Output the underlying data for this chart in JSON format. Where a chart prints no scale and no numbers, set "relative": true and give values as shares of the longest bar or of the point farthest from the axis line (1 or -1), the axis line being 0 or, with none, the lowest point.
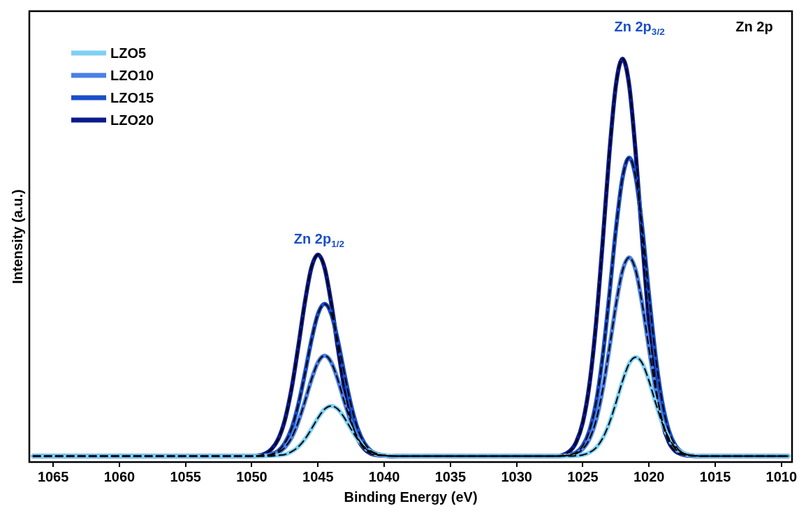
{
  "chart_data": {
    "type": "line",
    "xlabel": "Binding Energy (eV)",
    "ylabel": "Intensity (a.u.)",
    "relative": true,
    "xlim": [
      1066.8,
      1009.2
    ],
    "xticks": [
      1065,
      1060,
      1055,
      1050,
      1045,
      1040,
      1035,
      1030,
      1025,
      1020,
      1015,
      1010
    ],
    "legend": "top left",
    "grid": false,
    "marker": "none",
    "x": [
      1066.5,
      1050,
      1049,
      1048.5,
      1048,
      1047.5,
      1047,
      1046.5,
      1046,
      1045.5,
      1045,
      1044.5,
      1044,
      1043.5,
      1043,
      1042.5,
      1042,
      1041.5,
      1041,
      1040.5,
      1040,
      1039.5,
      1039,
      1027,
      1026,
      1025.5,
      1025,
      1024.5,
      1024,
      1023.5,
      1023,
      1022.5,
      1022,
      1021.5,
      1021,
      1020.5,
      1020,
      1019.5,
      1019,
      1018.5,
      1018,
      1017.5,
      1017,
      1016.5,
      1016,
      1009.5
    ],
    "series": [
      {
        "name": "LZO5",
        "color": "#7fd0f4",
        "values": [
          0,
          0,
          0,
          0.001,
          0.002,
          0.004,
          0.011,
          0.023,
          0.042,
          0.068,
          0.096,
          0.118,
          0.126,
          0.118,
          0.096,
          0.068,
          0.042,
          0.023,
          0.011,
          0.004,
          0.002,
          0.001,
          0,
          0,
          0,
          0.001,
          0.003,
          0.009,
          0.021,
          0.045,
          0.083,
          0.134,
          0.189,
          0.233,
          0.249,
          0.233,
          0.189,
          0.134,
          0.083,
          0.045,
          0.021,
          0.009,
          0.003,
          0.001,
          0,
          0
        ]
      },
      {
        "name": "LZO10",
        "color": "#4a80e6",
        "values": [
          0,
          0,
          0.001,
          0.003,
          0.009,
          0.022,
          0.046,
          0.085,
          0.136,
          0.192,
          0.236,
          0.253,
          0.236,
          0.192,
          0.136,
          0.085,
          0.046,
          0.022,
          0.009,
          0.003,
          0.001,
          0,
          0,
          0,
          0.002,
          0.006,
          0.018,
          0.043,
          0.09,
          0.167,
          0.27,
          0.38,
          0.467,
          0.5,
          0.467,
          0.38,
          0.27,
          0.167,
          0.09,
          0.043,
          0.018,
          0.006,
          0.002,
          0.001,
          0,
          0
        ]
      },
      {
        "name": "LZO15",
        "color": "#1a4fc9",
        "values": [
          0,
          0,
          0.002,
          0.005,
          0.013,
          0.033,
          0.069,
          0.128,
          0.206,
          0.291,
          0.358,
          0.383,
          0.358,
          0.291,
          0.206,
          0.128,
          0.069,
          0.033,
          0.013,
          0.005,
          0.002,
          0,
          0,
          0,
          0.003,
          0.009,
          0.026,
          0.064,
          0.135,
          0.251,
          0.405,
          0.571,
          0.701,
          0.751,
          0.701,
          0.571,
          0.405,
          0.251,
          0.135,
          0.064,
          0.026,
          0.009,
          0.003,
          0.001,
          0,
          0
        ]
      },
      {
        "name": "LZO20",
        "color": "#0b1a8c",
        "values": [
          0,
          0,
          0.006,
          0.018,
          0.043,
          0.091,
          0.169,
          0.273,
          0.385,
          0.474,
          0.507,
          0.474,
          0.385,
          0.273,
          0.169,
          0.091,
          0.043,
          0.018,
          0.006,
          0.002,
          0.001,
          0,
          0,
          0,
          0.012,
          0.035,
          0.085,
          0.18,
          0.334,
          0.539,
          0.76,
          0.934,
          1,
          0.934,
          0.76,
          0.539,
          0.334,
          0.18,
          0.085,
          0.035,
          0.012,
          0.004,
          0.001,
          0,
          0,
          0
        ]
      },
      {
        "color": "#000000",
        "line_style": "dashed",
        "values": [
          0,
          0,
          0,
          0,
          0.002,
          0.004,
          0.011,
          0.023,
          0.042,
          0.068,
          0.096,
          0.118,
          0.126,
          0.118,
          0.096,
          0.068,
          0.042,
          0.023,
          0.011,
          0.004,
          0.002,
          0.001,
          0,
          0,
          0,
          0.001,
          0.003,
          0.009,
          0.021,
          0.045,
          0.083,
          0.134,
          0.189,
          0.233,
          0.249,
          0.233,
          0.189,
          0.134,
          0.083,
          0.045,
          0.021,
          0.009,
          0.003,
          0.001,
          0,
          0
        ]
      },
      {
        "color": "#000000",
        "line_style": "dashed",
        "values": [
          0,
          0,
          0,
          0.003,
          0.009,
          0.022,
          0.046,
          0.085,
          0.136,
          0.192,
          0.236,
          0.253,
          0.236,
          0.192,
          0.136,
          0.085,
          0.046,
          0.022,
          0.009,
          0.003,
          0.001,
          0,
          0,
          0,
          0.002,
          0.006,
          0.018,
          0.043,
          0.09,
          0.167,
          0.27,
          0.38,
          0.467,
          0.5,
          0.467,
          0.38,
          0.27,
          0.167,
          0.09,
          0.043,
          0.018,
          0.006,
          0.002,
          0.001,
          0,
          0
        ]
      },
      {
        "color": "#000000",
        "line_style": "dashed",
        "values": [
          0,
          0,
          0.002,
          0.005,
          0.013,
          0.033,
          0.069,
          0.128,
          0.206,
          0.291,
          0.358,
          0.383,
          0.358,
          0.291,
          0.206,
          0.128,
          0.069,
          0.033,
          0.013,
          0.005,
          0.002,
          0,
          0,
          0,
          0.003,
          0.009,
          0.026,
          0.064,
          0.135,
          0.251,
          0.405,
          0.571,
          0.701,
          0.751,
          0.701,
          0.571,
          0.405,
          0.251,
          0.135,
          0.064,
          0.026,
          0.009,
          0.003,
          0.001,
          0,
          0
        ]
      },
      {
        "color": "#000000",
        "line_style": "dashed",
        "values": [
          0,
          0,
          0.006,
          0.018,
          0.043,
          0.091,
          0.169,
          0.273,
          0.385,
          0.474,
          0.507,
          0.474,
          0.385,
          0.273,
          0.169,
          0.091,
          0.043,
          0.018,
          0.006,
          0.002,
          0.001,
          0,
          0,
          0,
          0.012,
          0.035,
          0.085,
          0.18,
          0.334,
          0.539,
          0.76,
          0.934,
          1,
          0.934,
          0.76,
          0.539,
          0.334,
          0.18,
          0.085,
          0.035,
          0.012,
          0.004,
          0.001,
          0,
          0,
          0
        ]
      }
    ],
    "annotations": [
      "Zn 2p$_{3/2}$",
      "Zn 2p$_{1/2}$",
      "Zn 2p"
    ]
  }
}
